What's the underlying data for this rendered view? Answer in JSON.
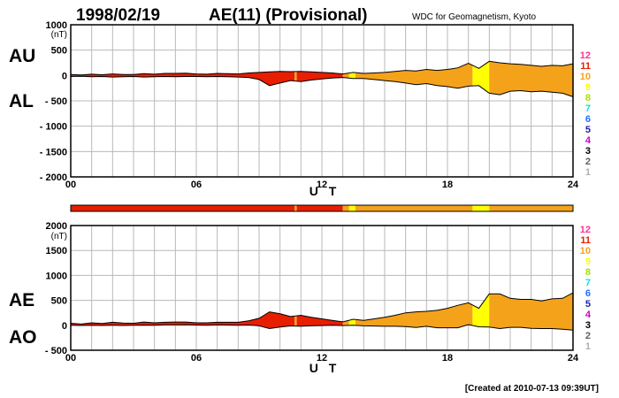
{
  "header": {
    "date": "1998/02/19",
    "index": "AE(11) (Provisional)",
    "source": "WDC for Geomagnetism, Kyoto"
  },
  "footer": {
    "created": "[Created at 2010-07-13 09:39UT]"
  },
  "x_axis": {
    "label": "U T",
    "ticks": [
      "00",
      "06",
      "12",
      "18",
      "24"
    ]
  },
  "top_panel": {
    "labels": [
      "AU",
      "AL"
    ],
    "unit": "(nT)",
    "yticks": [
      "1000",
      "500",
      "0",
      "- 500",
      "- 1000",
      "- 1500",
      "- 2000"
    ],
    "ylim": [
      -2000,
      1000
    ]
  },
  "bottom_panel": {
    "labels": [
      "AE",
      "AO"
    ],
    "unit": "(nT)",
    "yticks": [
      "2000",
      "1500",
      "1000",
      "500",
      "0",
      "- 500"
    ],
    "ylim": [
      -500,
      2000
    ]
  },
  "station_count_legend": {
    "labels": [
      "12",
      "11",
      "10",
      "9",
      "8",
      "7",
      "6",
      "5",
      "4",
      "3",
      "2",
      "1"
    ],
    "colors": [
      "#ff3399",
      "#e81e00",
      "#f5a21b",
      "#ffff00",
      "#a8e000",
      "#00e5e5",
      "#1e6fff",
      "#2020b0",
      "#cc00cc",
      "#000000",
      "#606060",
      "#b0b0b0"
    ]
  },
  "chart_data": {
    "type": "area",
    "x_unit": "UT hour",
    "xlim": [
      0,
      24
    ],
    "station_segments": [
      {
        "start": 0,
        "end": 10.7,
        "stations": 11
      },
      {
        "start": 10.7,
        "end": 10.8,
        "stations": 10
      },
      {
        "start": 10.8,
        "end": 13.0,
        "stations": 11
      },
      {
        "start": 13.0,
        "end": 13.3,
        "stations": 10
      },
      {
        "start": 13.3,
        "end": 13.6,
        "stations": 9
      },
      {
        "start": 13.6,
        "end": 19.2,
        "stations": 10
      },
      {
        "start": 19.2,
        "end": 20.0,
        "stations": 9
      },
      {
        "start": 20.0,
        "end": 24,
        "stations": 10
      }
    ],
    "series": [
      {
        "name": "AU",
        "x": [
          0,
          0.5,
          1,
          1.5,
          2,
          2.5,
          3,
          3.5,
          4,
          4.5,
          5,
          5.5,
          6,
          6.5,
          7,
          7.5,
          8,
          8.5,
          9,
          9.5,
          10,
          10.5,
          11,
          11.5,
          12,
          12.5,
          13,
          13.5,
          14,
          14.5,
          15,
          15.5,
          16,
          16.5,
          17,
          17.5,
          18,
          18.5,
          19,
          19.5,
          20,
          20.5,
          21,
          21.5,
          22,
          22.5,
          23,
          23.5,
          24
        ],
        "values": [
          20,
          10,
          25,
          15,
          30,
          20,
          20,
          35,
          25,
          40,
          40,
          45,
          30,
          25,
          40,
          35,
          30,
          50,
          60,
          70,
          80,
          75,
          80,
          70,
          60,
          50,
          30,
          60,
          40,
          50,
          60,
          80,
          100,
          90,
          120,
          100,
          120,
          150,
          240,
          140,
          280,
          250,
          230,
          220,
          200,
          180,
          200,
          190,
          230
        ]
      },
      {
        "name": "AL",
        "x": [
          0,
          0.5,
          1,
          1.5,
          2,
          2.5,
          3,
          3.5,
          4,
          4.5,
          5,
          5.5,
          6,
          6.5,
          7,
          7.5,
          8,
          8.5,
          9,
          9.5,
          10,
          10.5,
          11,
          11.5,
          12,
          12.5,
          13,
          13.5,
          14,
          14.5,
          15,
          15.5,
          16,
          16.5,
          17,
          17.5,
          18,
          18.5,
          19,
          19.5,
          20,
          20.5,
          21,
          21.5,
          22,
          22.5,
          23,
          23.5,
          24
        ],
        "values": [
          -20,
          -15,
          -25,
          -20,
          -30,
          -25,
          -20,
          -30,
          -25,
          -20,
          -25,
          -20,
          -20,
          -25,
          -20,
          -25,
          -30,
          -40,
          -80,
          -200,
          -150,
          -100,
          -120,
          -90,
          -70,
          -50,
          -40,
          -60,
          -60,
          -80,
          -100,
          -120,
          -150,
          -180,
          -160,
          -200,
          -220,
          -250,
          -210,
          -200,
          -350,
          -380,
          -310,
          -300,
          -320,
          -310,
          -330,
          -350,
          -420
        ]
      },
      {
        "name": "AE",
        "x": [
          0,
          0.5,
          1,
          1.5,
          2,
          2.5,
          3,
          3.5,
          4,
          4.5,
          5,
          5.5,
          6,
          6.5,
          7,
          7.5,
          8,
          8.5,
          9,
          9.5,
          10,
          10.5,
          11,
          11.5,
          12,
          12.5,
          13,
          13.5,
          14,
          14.5,
          15,
          15.5,
          16,
          16.5,
          17,
          17.5,
          18,
          18.5,
          19,
          19.5,
          20,
          20.5,
          21,
          21.5,
          22,
          22.5,
          23,
          23.5,
          24
        ],
        "values": [
          40,
          25,
          50,
          35,
          60,
          45,
          40,
          65,
          50,
          60,
          65,
          65,
          50,
          50,
          60,
          60,
          60,
          90,
          140,
          270,
          230,
          175,
          200,
          160,
          130,
          100,
          70,
          120,
          100,
          130,
          160,
          200,
          250,
          270,
          280,
          300,
          340,
          400,
          450,
          340,
          630,
          630,
          540,
          520,
          520,
          490,
          530,
          540,
          650
        ]
      },
      {
        "name": "AO",
        "x": [
          0,
          0.5,
          1,
          1.5,
          2,
          2.5,
          3,
          3.5,
          4,
          4.5,
          5,
          5.5,
          6,
          6.5,
          7,
          7.5,
          8,
          8.5,
          9,
          9.5,
          10,
          10.5,
          11,
          11.5,
          12,
          12.5,
          13,
          13.5,
          14,
          14.5,
          15,
          15.5,
          16,
          16.5,
          17,
          17.5,
          18,
          18.5,
          19,
          19.5,
          20,
          20.5,
          21,
          21.5,
          22,
          22.5,
          23,
          23.5,
          24
        ],
        "values": [
          0,
          -3,
          0,
          -3,
          0,
          -3,
          0,
          3,
          0,
          10,
          8,
          13,
          5,
          0,
          10,
          5,
          0,
          5,
          -10,
          -65,
          -35,
          -13,
          -20,
          -10,
          -5,
          0,
          -5,
          0,
          -10,
          -15,
          -20,
          -20,
          -25,
          -45,
          -20,
          -50,
          -50,
          -50,
          15,
          -30,
          -35,
          -65,
          -40,
          -40,
          -60,
          -65,
          -65,
          -80,
          -95
        ]
      }
    ]
  }
}
